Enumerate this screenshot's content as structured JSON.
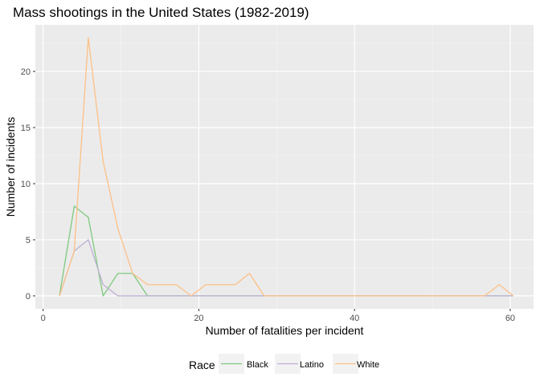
{
  "chart_data": {
    "type": "line",
    "title": "Mass shootings in the United States (1982-2019)",
    "xlabel": "Number of fatalities per incident",
    "ylabel": "Number of incidents",
    "xlim": [
      -1,
      63
    ],
    "ylim": [
      -1.15,
      24.15
    ],
    "x_ticks": [
      0,
      20,
      40,
      60
    ],
    "x_ticks_minor": [
      10,
      30,
      50
    ],
    "y_ticks": [
      0,
      5,
      10,
      15,
      20
    ],
    "y_ticks_minor": [
      2.5,
      7.5,
      12.5,
      17.5,
      22.5
    ],
    "grid": true,
    "legend": {
      "title": "Race",
      "position": "bottom"
    },
    "x": [
      2.1,
      4.0,
      5.8,
      7.7,
      9.6,
      11.5,
      13.4,
      15.2,
      17.1,
      19.0,
      20.9,
      22.8,
      24.7,
      26.5,
      28.4,
      30.3,
      32.2,
      34.1,
      36.0,
      37.8,
      39.7,
      41.6,
      43.5,
      45.4,
      47.3,
      49.1,
      51.0,
      52.9,
      54.8,
      56.7,
      58.6,
      60.4
    ],
    "series": [
      {
        "name": "Black",
        "color": "#7fc97f",
        "values": [
          0,
          8,
          7,
          0,
          2,
          2,
          0,
          0,
          0,
          0,
          0,
          0,
          0,
          0,
          0,
          0,
          0,
          0,
          0,
          0,
          0,
          0,
          0,
          0,
          0,
          0,
          0,
          0,
          0,
          0,
          0,
          0
        ]
      },
      {
        "name": "Latino",
        "color": "#beaed4",
        "values": [
          0,
          4,
          5,
          1,
          0,
          0,
          0,
          0,
          0,
          0,
          0,
          0,
          0,
          0,
          0,
          0,
          0,
          0,
          0,
          0,
          0,
          0,
          0,
          0,
          0,
          0,
          0,
          0,
          0,
          0,
          0,
          0
        ]
      },
      {
        "name": "White",
        "color": "#fdc086",
        "values": [
          0,
          4,
          23,
          12,
          6,
          2,
          1,
          1,
          1,
          0,
          1,
          1,
          1,
          2,
          0,
          0,
          0,
          0,
          0,
          0,
          0,
          0,
          0,
          0,
          0,
          0,
          0,
          0,
          0,
          0,
          1,
          0
        ]
      }
    ]
  }
}
